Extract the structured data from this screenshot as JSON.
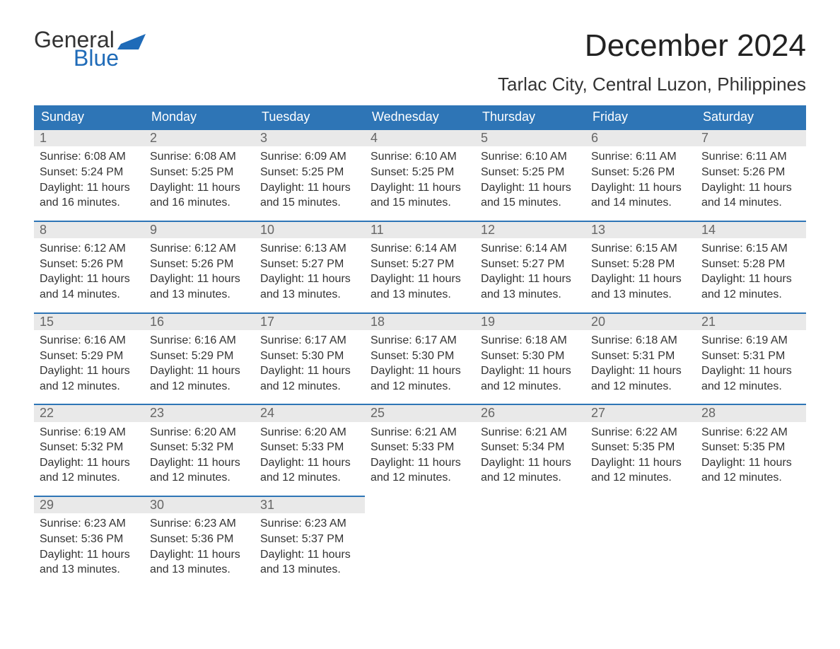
{
  "branding": {
    "logo_top": "General",
    "logo_bottom": "Blue",
    "flag_color": "#1f6bb8"
  },
  "title": "December 2024",
  "location": "Tarlac City, Central Luzon, Philippines",
  "colors": {
    "header_bg": "#2e75b6",
    "header_text": "#ffffff",
    "daynum_bg": "#e9e9e9",
    "daynum_text": "#666666",
    "body_text": "#333333",
    "week_border": "#2e75b6",
    "page_bg": "#ffffff"
  },
  "typography": {
    "title_fontsize": 44,
    "location_fontsize": 26,
    "dayname_fontsize": 18,
    "daynum_fontsize": 18,
    "body_fontsize": 16
  },
  "day_names": [
    "Sunday",
    "Monday",
    "Tuesday",
    "Wednesday",
    "Thursday",
    "Friday",
    "Saturday"
  ],
  "weeks": [
    [
      {
        "num": "1",
        "sunrise": "Sunrise: 6:08 AM",
        "sunset": "Sunset: 5:24 PM",
        "daylight1": "Daylight: 11 hours",
        "daylight2": "and 16 minutes."
      },
      {
        "num": "2",
        "sunrise": "Sunrise: 6:08 AM",
        "sunset": "Sunset: 5:25 PM",
        "daylight1": "Daylight: 11 hours",
        "daylight2": "and 16 minutes."
      },
      {
        "num": "3",
        "sunrise": "Sunrise: 6:09 AM",
        "sunset": "Sunset: 5:25 PM",
        "daylight1": "Daylight: 11 hours",
        "daylight2": "and 15 minutes."
      },
      {
        "num": "4",
        "sunrise": "Sunrise: 6:10 AM",
        "sunset": "Sunset: 5:25 PM",
        "daylight1": "Daylight: 11 hours",
        "daylight2": "and 15 minutes."
      },
      {
        "num": "5",
        "sunrise": "Sunrise: 6:10 AM",
        "sunset": "Sunset: 5:25 PM",
        "daylight1": "Daylight: 11 hours",
        "daylight2": "and 15 minutes."
      },
      {
        "num": "6",
        "sunrise": "Sunrise: 6:11 AM",
        "sunset": "Sunset: 5:26 PM",
        "daylight1": "Daylight: 11 hours",
        "daylight2": "and 14 minutes."
      },
      {
        "num": "7",
        "sunrise": "Sunrise: 6:11 AM",
        "sunset": "Sunset: 5:26 PM",
        "daylight1": "Daylight: 11 hours",
        "daylight2": "and 14 minutes."
      }
    ],
    [
      {
        "num": "8",
        "sunrise": "Sunrise: 6:12 AM",
        "sunset": "Sunset: 5:26 PM",
        "daylight1": "Daylight: 11 hours",
        "daylight2": "and 14 minutes."
      },
      {
        "num": "9",
        "sunrise": "Sunrise: 6:12 AM",
        "sunset": "Sunset: 5:26 PM",
        "daylight1": "Daylight: 11 hours",
        "daylight2": "and 13 minutes."
      },
      {
        "num": "10",
        "sunrise": "Sunrise: 6:13 AM",
        "sunset": "Sunset: 5:27 PM",
        "daylight1": "Daylight: 11 hours",
        "daylight2": "and 13 minutes."
      },
      {
        "num": "11",
        "sunrise": "Sunrise: 6:14 AM",
        "sunset": "Sunset: 5:27 PM",
        "daylight1": "Daylight: 11 hours",
        "daylight2": "and 13 minutes."
      },
      {
        "num": "12",
        "sunrise": "Sunrise: 6:14 AM",
        "sunset": "Sunset: 5:27 PM",
        "daylight1": "Daylight: 11 hours",
        "daylight2": "and 13 minutes."
      },
      {
        "num": "13",
        "sunrise": "Sunrise: 6:15 AM",
        "sunset": "Sunset: 5:28 PM",
        "daylight1": "Daylight: 11 hours",
        "daylight2": "and 13 minutes."
      },
      {
        "num": "14",
        "sunrise": "Sunrise: 6:15 AM",
        "sunset": "Sunset: 5:28 PM",
        "daylight1": "Daylight: 11 hours",
        "daylight2": "and 12 minutes."
      }
    ],
    [
      {
        "num": "15",
        "sunrise": "Sunrise: 6:16 AM",
        "sunset": "Sunset: 5:29 PM",
        "daylight1": "Daylight: 11 hours",
        "daylight2": "and 12 minutes."
      },
      {
        "num": "16",
        "sunrise": "Sunrise: 6:16 AM",
        "sunset": "Sunset: 5:29 PM",
        "daylight1": "Daylight: 11 hours",
        "daylight2": "and 12 minutes."
      },
      {
        "num": "17",
        "sunrise": "Sunrise: 6:17 AM",
        "sunset": "Sunset: 5:30 PM",
        "daylight1": "Daylight: 11 hours",
        "daylight2": "and 12 minutes."
      },
      {
        "num": "18",
        "sunrise": "Sunrise: 6:17 AM",
        "sunset": "Sunset: 5:30 PM",
        "daylight1": "Daylight: 11 hours",
        "daylight2": "and 12 minutes."
      },
      {
        "num": "19",
        "sunrise": "Sunrise: 6:18 AM",
        "sunset": "Sunset: 5:30 PM",
        "daylight1": "Daylight: 11 hours",
        "daylight2": "and 12 minutes."
      },
      {
        "num": "20",
        "sunrise": "Sunrise: 6:18 AM",
        "sunset": "Sunset: 5:31 PM",
        "daylight1": "Daylight: 11 hours",
        "daylight2": "and 12 minutes."
      },
      {
        "num": "21",
        "sunrise": "Sunrise: 6:19 AM",
        "sunset": "Sunset: 5:31 PM",
        "daylight1": "Daylight: 11 hours",
        "daylight2": "and 12 minutes."
      }
    ],
    [
      {
        "num": "22",
        "sunrise": "Sunrise: 6:19 AM",
        "sunset": "Sunset: 5:32 PM",
        "daylight1": "Daylight: 11 hours",
        "daylight2": "and 12 minutes."
      },
      {
        "num": "23",
        "sunrise": "Sunrise: 6:20 AM",
        "sunset": "Sunset: 5:32 PM",
        "daylight1": "Daylight: 11 hours",
        "daylight2": "and 12 minutes."
      },
      {
        "num": "24",
        "sunrise": "Sunrise: 6:20 AM",
        "sunset": "Sunset: 5:33 PM",
        "daylight1": "Daylight: 11 hours",
        "daylight2": "and 12 minutes."
      },
      {
        "num": "25",
        "sunrise": "Sunrise: 6:21 AM",
        "sunset": "Sunset: 5:33 PM",
        "daylight1": "Daylight: 11 hours",
        "daylight2": "and 12 minutes."
      },
      {
        "num": "26",
        "sunrise": "Sunrise: 6:21 AM",
        "sunset": "Sunset: 5:34 PM",
        "daylight1": "Daylight: 11 hours",
        "daylight2": "and 12 minutes."
      },
      {
        "num": "27",
        "sunrise": "Sunrise: 6:22 AM",
        "sunset": "Sunset: 5:35 PM",
        "daylight1": "Daylight: 11 hours",
        "daylight2": "and 12 minutes."
      },
      {
        "num": "28",
        "sunrise": "Sunrise: 6:22 AM",
        "sunset": "Sunset: 5:35 PM",
        "daylight1": "Daylight: 11 hours",
        "daylight2": "and 12 minutes."
      }
    ],
    [
      {
        "num": "29",
        "sunrise": "Sunrise: 6:23 AM",
        "sunset": "Sunset: 5:36 PM",
        "daylight1": "Daylight: 11 hours",
        "daylight2": "and 13 minutes."
      },
      {
        "num": "30",
        "sunrise": "Sunrise: 6:23 AM",
        "sunset": "Sunset: 5:36 PM",
        "daylight1": "Daylight: 11 hours",
        "daylight2": "and 13 minutes."
      },
      {
        "num": "31",
        "sunrise": "Sunrise: 6:23 AM",
        "sunset": "Sunset: 5:37 PM",
        "daylight1": "Daylight: 11 hours",
        "daylight2": "and 13 minutes."
      },
      null,
      null,
      null,
      null
    ]
  ]
}
